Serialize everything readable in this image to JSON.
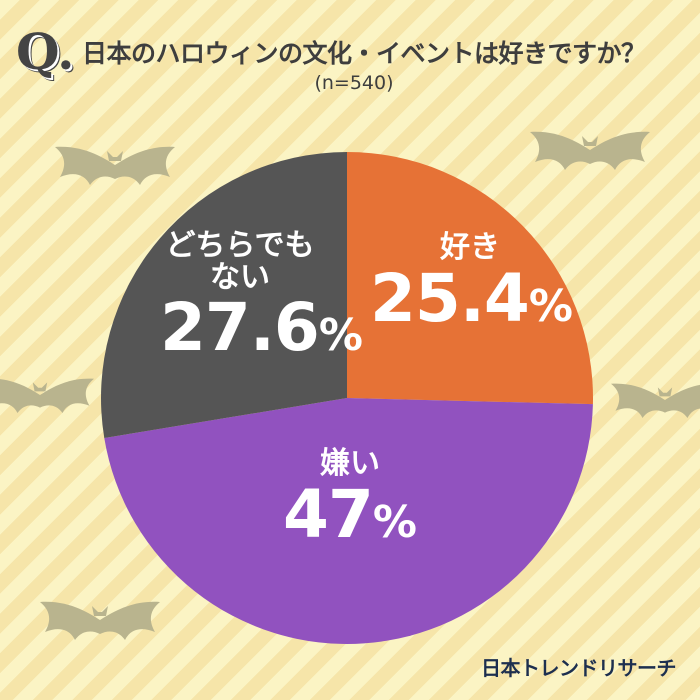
{
  "header": {
    "q_mark": "Q.",
    "title": "日本のハロウィンの文化・イベントは好きですか？",
    "sample": "(n=540)"
  },
  "chart_data": {
    "type": "pie",
    "title": "日本のハロウィンの文化・イベントは好きですか？",
    "categories": [
      "好き",
      "嫌い",
      "どちらでもない"
    ],
    "values": [
      25.4,
      47,
      27.6
    ],
    "display_values": [
      "25.4",
      "47",
      "27.6"
    ],
    "unit": "%",
    "colors": [
      "#e67236",
      "#9152bf",
      "#555555"
    ],
    "start": "top, clockwise"
  },
  "labels": [
    {
      "name": "好き",
      "value": "25.4",
      "unit": "%"
    },
    {
      "name": "嫌い",
      "value": "47",
      "unit": "%"
    },
    {
      "name": "どちらでもない",
      "value": "27.6",
      "unit": "%"
    }
  ],
  "background": {
    "stripe_colors": [
      "#fbf4c4",
      "#f6e5a9"
    ],
    "decoration": "bat-icon"
  },
  "footer": {
    "logo": "日本トレンドリサーチ"
  }
}
